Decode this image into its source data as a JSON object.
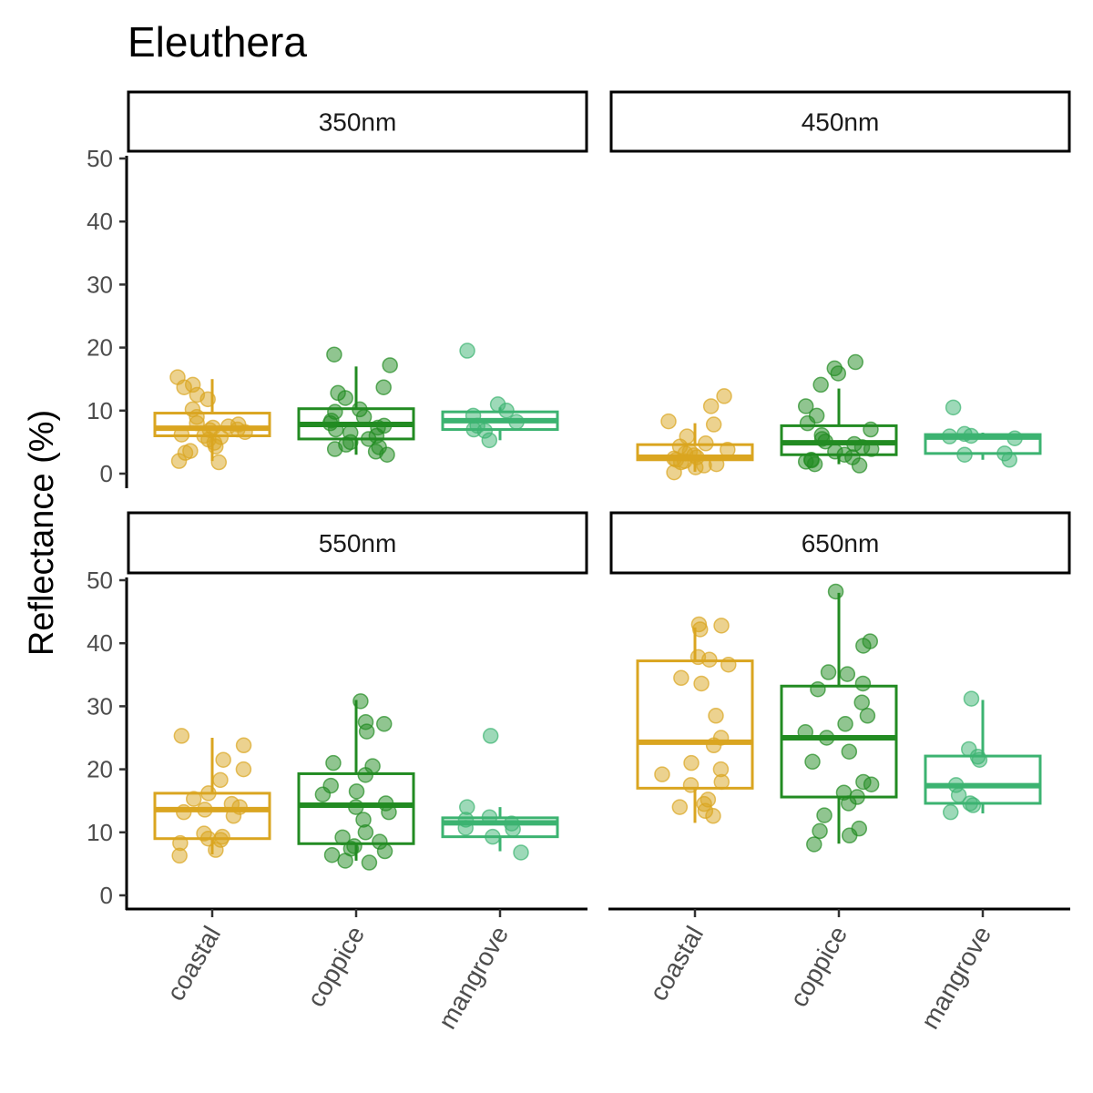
{
  "chart_data": {
    "type": "boxplot",
    "title": "Eleuthera",
    "xlabel": "",
    "ylabel": "Reflectance (%)",
    "ylim": [
      0,
      50
    ],
    "yticks": [
      0,
      10,
      20,
      30,
      40,
      50
    ],
    "categories": [
      "coastal",
      "coppice",
      "mangrove"
    ],
    "colors": {
      "coastal": "#DAA520",
      "coppice": "#228B22",
      "mangrove": "#3CB371"
    },
    "panels": [
      {
        "label": "350nm",
        "boxes": [
          {
            "category": "coastal",
            "whisker_low": 2,
            "q1": 6,
            "median": 7.2,
            "q3": 9.6,
            "whisker_high": 15,
            "points": [
              15.3,
              14.1,
              13.7,
              12.5,
              11.8,
              10.2,
              9.0,
              8.0,
              7.8,
              7.5,
              7.3,
              7.0,
              6.9,
              6.6,
              6.2,
              6.0,
              5.8,
              5.4,
              4.9,
              4.3,
              3.6,
              3.3,
              2.0,
              1.8
            ]
          },
          {
            "category": "coppice",
            "whisker_low": 3,
            "q1": 5.5,
            "median": 7.8,
            "q3": 10.3,
            "whisker_high": 17,
            "points": [
              18.9,
              17.2,
              13.7,
              12.8,
              12.0,
              10.2,
              9.8,
              9.0,
              8.4,
              8.0,
              7.6,
              7.3,
              7.0,
              6.5,
              6.0,
              5.5,
              5.0,
              4.6,
              4.2,
              3.9,
              3.5,
              3.0
            ]
          },
          {
            "category": "mangrove",
            "whisker_low": 5.3,
            "q1": 7,
            "median": 8.4,
            "q3": 9.8,
            "whisker_high": 10.5,
            "points": [
              19.5,
              11.0,
              10.0,
              9.2,
              8.2,
              7.6,
              7.0,
              6.8,
              5.3
            ]
          }
        ]
      },
      {
        "label": "450nm",
        "boxes": [
          {
            "category": "coastal",
            "whisker_low": 0.3,
            "q1": 2.2,
            "median": 2.6,
            "q3": 4.6,
            "whisker_high": 8,
            "points": [
              12.3,
              10.7,
              8.3,
              7.8,
              5.9,
              4.8,
              4.3,
              3.8,
              3.5,
              3.2,
              2.9,
              2.6,
              2.4,
              2.2,
              2.0,
              1.8,
              1.5,
              1.3,
              1.0,
              0.2
            ]
          },
          {
            "category": "coppice",
            "whisker_low": 1.5,
            "q1": 3,
            "median": 4.9,
            "q3": 7.6,
            "whisker_high": 13.5,
            "points": [
              17.7,
              16.7,
              15.9,
              14.1,
              10.7,
              9.2,
              8.0,
              7.0,
              6.1,
              5.5,
              5.1,
              4.7,
              4.2,
              3.9,
              3.5,
              3.0,
              2.6,
              2.2,
              2.1,
              1.9,
              1.5,
              1.3
            ]
          },
          {
            "category": "mangrove",
            "whisker_low": 2.2,
            "q1": 3.2,
            "median": 5.8,
            "q3": 6.2,
            "whisker_high": 6.5,
            "points": [
              10.5,
              6.3,
              6.0,
              5.9,
              5.6,
              3.2,
              3.0,
              2.2
            ]
          }
        ]
      },
      {
        "label": "550nm",
        "boxes": [
          {
            "category": "coastal",
            "whisker_low": 6.5,
            "q1": 9,
            "median": 13.6,
            "q3": 16.2,
            "whisker_high": 25,
            "points": [
              25.3,
              23.8,
              21.5,
              20.0,
              18.3,
              16.2,
              15.3,
              14.5,
              14.0,
              13.6,
              13.2,
              12.6,
              9.8,
              9.3,
              9.0,
              8.8,
              8.3,
              7.2,
              6.3
            ]
          },
          {
            "category": "coppice",
            "whisker_low": 5.5,
            "q1": 8.2,
            "median": 14.3,
            "q3": 19.3,
            "whisker_high": 31,
            "points": [
              30.8,
              27.5,
              27.2,
              26.0,
              21.0,
              20.5,
              19.1,
              17.4,
              16.5,
              16.0,
              14.6,
              14.0,
              13.2,
              12.0,
              10.0,
              9.2,
              8.5,
              7.8,
              7.4,
              7.0,
              6.4,
              5.5,
              5.2
            ]
          },
          {
            "category": "mangrove",
            "whisker_low": 7,
            "q1": 9.3,
            "median": 11.5,
            "q3": 12.3,
            "whisker_high": 14,
            "points": [
              25.3,
              14.0,
              12.4,
              12.0,
              11.4,
              10.7,
              10.5,
              9.3,
              6.8
            ]
          }
        ]
      },
      {
        "label": "650nm",
        "boxes": [
          {
            "category": "coastal",
            "whisker_low": 11.5,
            "q1": 17,
            "median": 24.3,
            "q3": 37.2,
            "whisker_high": 42.5,
            "points": [
              43.0,
              42.8,
              42.2,
              37.8,
              37.4,
              36.6,
              34.5,
              33.6,
              28.5,
              25.0,
              23.8,
              21.0,
              20.0,
              19.2,
              18.0,
              17.5,
              15.2,
              14.5,
              14.0,
              13.4,
              12.6
            ]
          },
          {
            "category": "coppice",
            "whisker_low": 8.2,
            "q1": 15.6,
            "median": 25,
            "q3": 33.2,
            "whisker_high": 48,
            "points": [
              48.2,
              40.3,
              39.6,
              35.4,
              35.1,
              33.6,
              32.7,
              30.6,
              28.5,
              27.2,
              25.9,
              25.0,
              22.8,
              21.2,
              18.0,
              17.6,
              16.3,
              15.6,
              14.6,
              12.7,
              10.6,
              10.2,
              9.5,
              8.1
            ]
          },
          {
            "category": "mangrove",
            "whisker_low": 13,
            "q1": 14.6,
            "median": 17.4,
            "q3": 22.1,
            "whisker_high": 31,
            "points": [
              31.2,
              23.2,
              22.0,
              21.5,
              17.5,
              15.9,
              14.6,
              14.3,
              13.2
            ]
          }
        ]
      }
    ]
  }
}
